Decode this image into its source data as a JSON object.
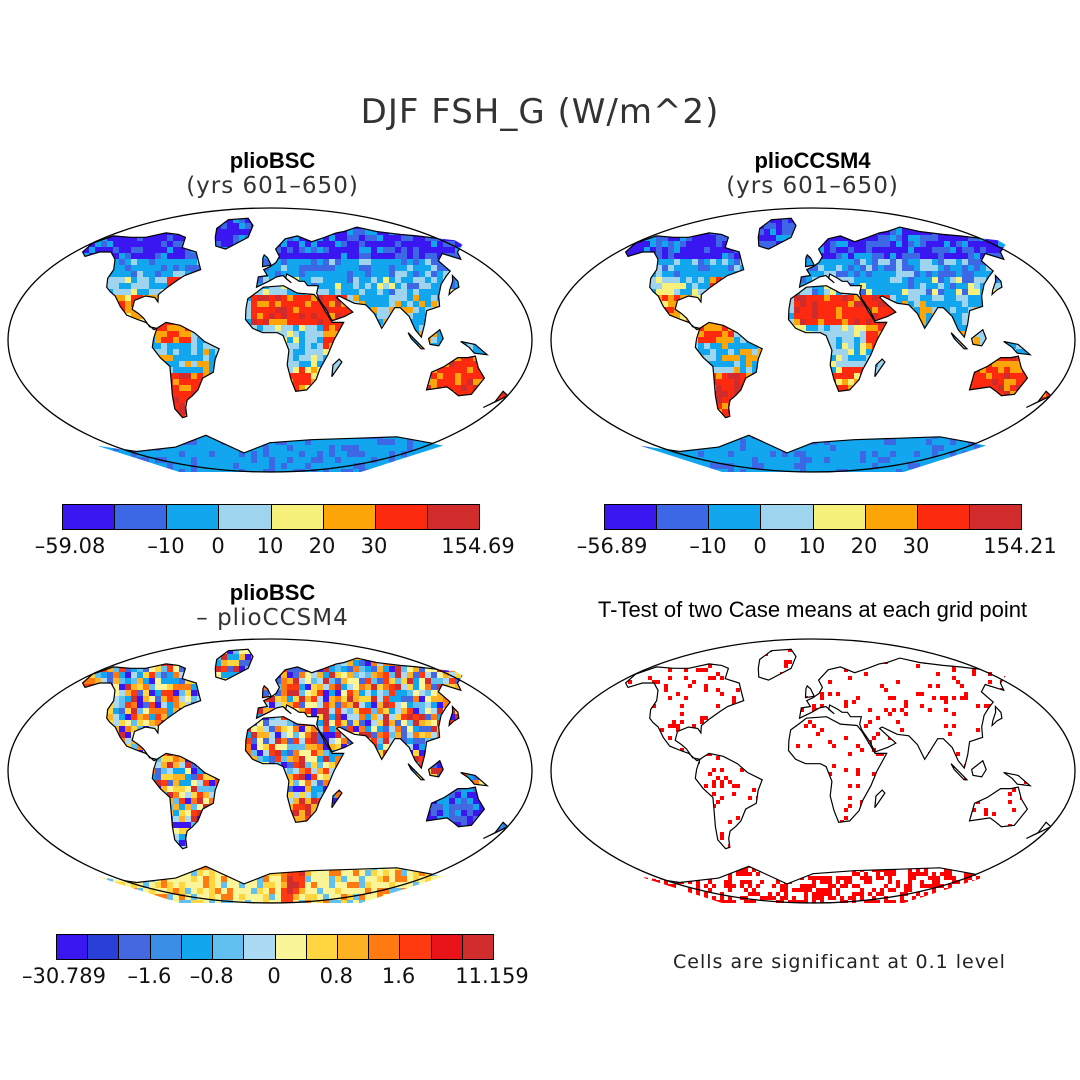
{
  "title": "DJF FSH_G (W/m^2)",
  "panels": [
    {
      "title": "plioBSC",
      "subtitle": "(yrs 601–650)",
      "colorbar": {
        "colors": [
          "#3a17f0",
          "#3c68e6",
          "#12a6ef",
          "#9fd4ee",
          "#f7f07a",
          "#fca508",
          "#fd2a10",
          "#d12c2c"
        ],
        "labels": [
          "–59.08",
          "–10",
          "0",
          "10",
          "20",
          "30",
          "154.69"
        ]
      }
    },
    {
      "title": "plioCCSM4",
      "subtitle": "(yrs 601–650)",
      "colorbar": {
        "colors": [
          "#3a17f0",
          "#3c68e6",
          "#12a6ef",
          "#9fd4ee",
          "#f7f07a",
          "#fca508",
          "#fd2a10",
          "#d12c2c"
        ],
        "labels": [
          "–56.89",
          "–10",
          "0",
          "10",
          "20",
          "30",
          "154.21"
        ]
      }
    },
    {
      "title": "plioBSC",
      "subtitle": "– plioCCSM4",
      "colorbar": {
        "colors": [
          "#3a17f0",
          "#2a3fd8",
          "#4468e0",
          "#3a8ee6",
          "#12a6ef",
          "#62c0f0",
          "#acdaf2",
          "#fbf59a",
          "#ffd640",
          "#ffb223",
          "#ff7a10",
          "#ff3a10",
          "#e8141a",
          "#d22d2d"
        ],
        "labels": [
          "–30.789",
          "–1.6",
          "–0.8",
          "0",
          "0.8",
          "1.6",
          "11.159"
        ]
      }
    },
    {
      "title": "T-Test of two Case means at each grid point",
      "note": "Cells are significant at 0.1 level"
    }
  ]
}
